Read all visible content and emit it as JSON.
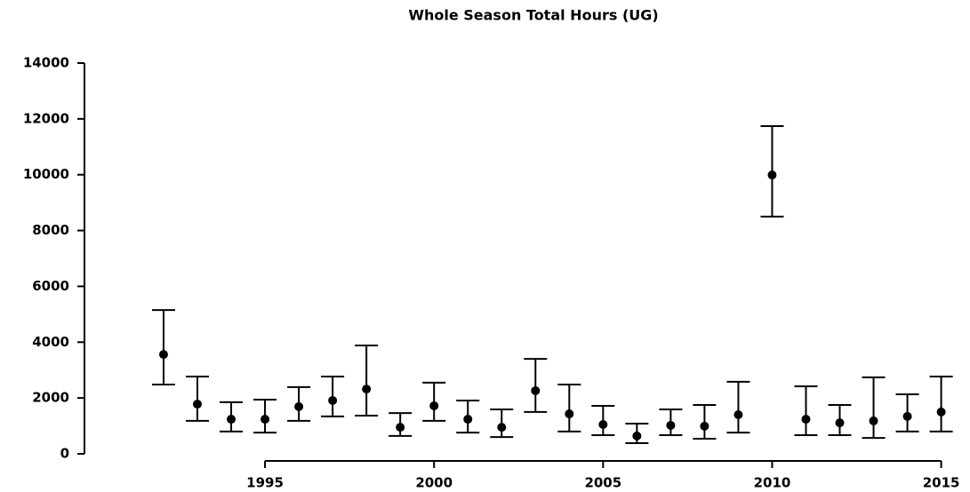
{
  "chart_data": {
    "type": "errorbar",
    "title": "Whole Season Total Hours (UG)",
    "x": [
      1992,
      1993,
      1994,
      1995,
      1996,
      1997,
      1998,
      1999,
      2000,
      2001,
      2002,
      2003,
      2004,
      2005,
      2006,
      2007,
      2008,
      2009,
      2010,
      2011,
      2012,
      2013,
      2014,
      2015
    ],
    "series": [
      {
        "color": "#000000",
        "values": [
          3560,
          1780,
          1240,
          1240,
          1690,
          1910,
          2320,
          950,
          1720,
          1240,
          950,
          2260,
          1430,
          1050,
          640,
          1020,
          990,
          1400,
          9990,
          1240,
          1110,
          1180,
          1340,
          1500
        ],
        "low": [
          2480,
          1180,
          800,
          760,
          1180,
          1340,
          1370,
          640,
          1180,
          760,
          600,
          1500,
          800,
          670,
          380,
          670,
          540,
          760,
          8500,
          670,
          670,
          570,
          800,
          800
        ],
        "high": [
          5150,
          2770,
          1850,
          1940,
          2390,
          2770,
          3880,
          1460,
          2550,
          1910,
          1590,
          3400,
          2480,
          1720,
          1080,
          1590,
          1750,
          2580,
          11740,
          2420,
          1750,
          2740,
          2130,
          2770
        ]
      }
    ],
    "xlim": [
      1989.66,
      2015.3
    ],
    "xticks": [
      1995,
      2000,
      2005,
      2010,
      2015
    ],
    "ylim": [
      0,
      14000
    ],
    "yticks": [
      0,
      2000,
      4000,
      6000,
      8000,
      10000,
      12000,
      14000
    ]
  }
}
